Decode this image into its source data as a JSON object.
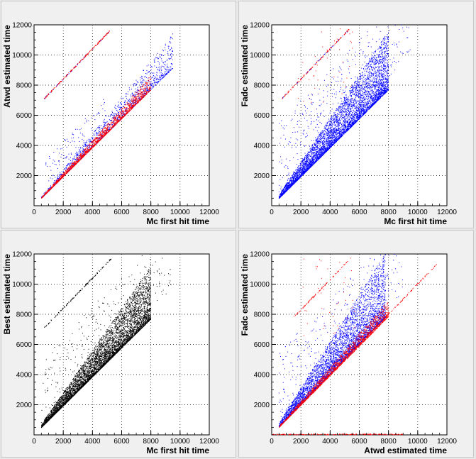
{
  "canvas_bg": "#f0f0f0",
  "colors": {
    "blue": "#0000ff",
    "red": "#ff0000",
    "black": "#000000"
  },
  "chart_data": [
    {
      "type": "scatter",
      "xlabel": "Mc first hit time",
      "ylabel": "Atwd estimated time",
      "xlim": [
        0,
        12000
      ],
      "ylim": [
        0,
        12000
      ],
      "xticks": [
        0,
        2000,
        4000,
        6000,
        8000,
        10000,
        12000
      ],
      "yticks": [
        2000,
        4000,
        6000,
        8000,
        10000,
        12000
      ],
      "grid": true,
      "series": [
        {
          "color": "#0000ff",
          "components": [
            {
              "kind": "band",
              "x": [
                500,
                9500
              ],
              "lower_slope": 0.96,
              "upper_slope": 1.2,
              "offset": 0,
              "n": 1400
            },
            {
              "kind": "line",
              "x": [
                700,
                5300
              ],
              "slope": 1.0,
              "offset": 6400,
              "n": 60
            },
            {
              "kind": "scatter",
              "x": [
                700,
                5000
              ],
              "y_above": [
                300,
                2300
              ],
              "n": 120
            }
          ]
        },
        {
          "color": "#ff0000",
          "components": [
            {
              "kind": "band",
              "x": [
                500,
                8000
              ],
              "lower_slope": 0.96,
              "upper_slope": 1.08,
              "offset": 0,
              "n": 1600
            },
            {
              "kind": "line",
              "x": [
                700,
                5200
              ],
              "slope": 1.0,
              "offset": 6400,
              "n": 180
            }
          ]
        }
      ]
    },
    {
      "type": "scatter",
      "xlabel": "Mc first hit time",
      "ylabel": "Fadc estimated time",
      "xlim": [
        0,
        12000
      ],
      "ylim": [
        0,
        12000
      ],
      "xticks": [
        0,
        2000,
        4000,
        6000,
        8000,
        10000,
        12000
      ],
      "yticks": [
        2000,
        4000,
        6000,
        8000,
        10000,
        12000
      ],
      "grid": true,
      "series": [
        {
          "color": "#ff0000",
          "components": [
            {
              "kind": "line",
              "x": [
                700,
                5300
              ],
              "slope": 1.0,
              "offset": 6400,
              "n": 150
            },
            {
              "kind": "scatter",
              "x": [
                1800,
                5600
              ],
              "y_above": [
                6800,
                11800
              ],
              "n": 40
            }
          ]
        },
        {
          "color": "#0000ff",
          "components": [
            {
              "kind": "band",
              "x": [
                500,
                8000
              ],
              "lower_slope": 0.96,
              "upper_slope": 1.45,
              "offset": 0,
              "n": 5200
            },
            {
              "kind": "scatter",
              "x": [
                500,
                9500
              ],
              "y_above": [
                400,
                5000
              ],
              "n": 400
            },
            {
              "kind": "line",
              "x": [
                700,
                5200
              ],
              "slope": 1.0,
              "offset": 6400,
              "n": 30
            }
          ]
        }
      ]
    },
    {
      "type": "scatter",
      "xlabel": "Mc first hit time",
      "ylabel": "Best estimated time",
      "xlim": [
        0,
        12000
      ],
      "ylim": [
        0,
        12000
      ],
      "xticks": [
        0,
        2000,
        4000,
        6000,
        8000,
        10000,
        12000
      ],
      "yticks": [
        2000,
        4000,
        6000,
        8000,
        10000,
        12000
      ],
      "grid": true,
      "series": [
        {
          "color": "#000000",
          "components": [
            {
              "kind": "band",
              "x": [
                500,
                8000
              ],
              "lower_slope": 0.96,
              "upper_slope": 1.4,
              "offset": 0,
              "n": 5600
            },
            {
              "kind": "scatter",
              "x": [
                500,
                9500
              ],
              "y_above": [
                300,
                4500
              ],
              "n": 300
            },
            {
              "kind": "line",
              "x": [
                700,
                5300
              ],
              "slope": 1.0,
              "offset": 6400,
              "n": 140
            }
          ]
        }
      ]
    },
    {
      "type": "scatter",
      "xlabel": "Atwd estimated time",
      "ylabel": "Fadc estimated time",
      "xlim": [
        0,
        12000
      ],
      "ylim": [
        0,
        12000
      ],
      "xticks": [
        0,
        2000,
        4000,
        6000,
        8000,
        10000,
        12000
      ],
      "yticks": [
        2000,
        4000,
        6000,
        8000,
        10000,
        12000
      ],
      "grid": true,
      "series": [
        {
          "color": "#0000ff",
          "components": [
            {
              "kind": "band",
              "x": [
                500,
                7800
              ],
              "lower_slope": 1.0,
              "upper_slope": 1.55,
              "offset": 0,
              "n": 4200
            },
            {
              "kind": "scatter",
              "x": [
                500,
                9000
              ],
              "y_above": [
                400,
                5000
              ],
              "n": 300
            }
          ]
        },
        {
          "color": "#ff0000",
          "components": [
            {
              "kind": "band",
              "x": [
                500,
                8000
              ],
              "lower_slope": 0.98,
              "upper_slope": 1.12,
              "offset": 0,
              "n": 1600
            },
            {
              "kind": "line",
              "x": [
                1500,
                11500
              ],
              "slope": 1.0,
              "offset": 0,
              "n": 180
            },
            {
              "kind": "line",
              "x": [
                1500,
                5500
              ],
              "slope": 1.0,
              "offset": 6300,
              "n": 90
            },
            {
              "kind": "scatter",
              "x": [
                2000,
                5800
              ],
              "y_above": [
                6500,
                11800
              ],
              "n": 40
            },
            {
              "kind": "hline",
              "x": [
                0,
                9000
              ],
              "y": 0,
              "n": 200
            }
          ]
        }
      ]
    }
  ]
}
